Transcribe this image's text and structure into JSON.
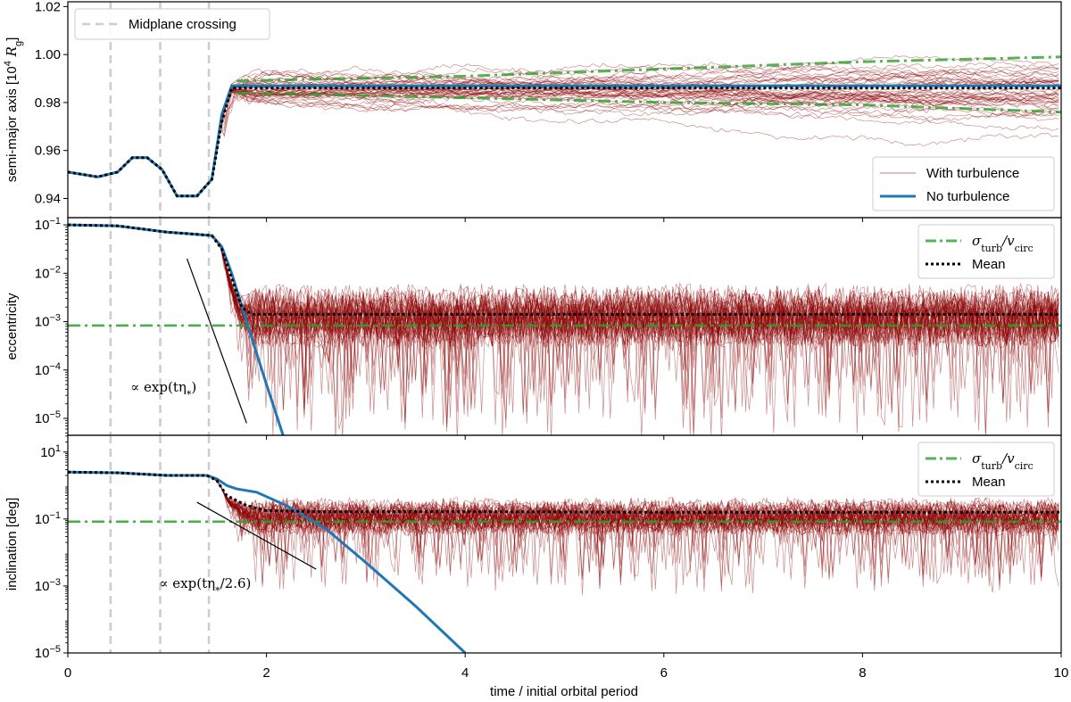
{
  "chart_data": {
    "type": "line",
    "shared_x": {
      "label": "time / initial orbital period",
      "lim": [
        0,
        10
      ],
      "ticks": [
        0,
        2,
        4,
        6,
        8,
        10
      ],
      "tick_labels": [
        "0",
        "2",
        "4",
        "6",
        "8",
        "10"
      ]
    },
    "midplane_crossings": [
      0.43,
      0.93,
      1.42
    ],
    "colors": {
      "turbulence": "#8b0000",
      "no_turbulence": "#1f77b4",
      "sigma": "#2ca02c",
      "mean": "#000000",
      "crossing": "#cccccc"
    },
    "panels": [
      {
        "id": "semi_major_axis",
        "ylabel": "semi-major axis [10",
        "ylabel_sup": "4",
        "ylabel_unit": " R",
        "ylabel_sub": "g",
        "ylabel_end": "]",
        "yscale": "linear",
        "ylim": [
          0.932,
          1.022
        ],
        "yticks": [
          0.94,
          0.96,
          0.98,
          1.0,
          1.02
        ],
        "ytick_labels": [
          "0.94",
          "0.96",
          "0.98",
          "1.00",
          "1.02"
        ],
        "no_turbulence": {
          "x": [
            0,
            0.3,
            0.5,
            0.65,
            0.8,
            0.95,
            1.1,
            1.3,
            1.45,
            1.55,
            1.65,
            1.8,
            2.5,
            4,
            6,
            8,
            10
          ],
          "y": [
            0.951,
            0.949,
            0.951,
            0.957,
            0.957,
            0.952,
            0.941,
            0.941,
            0.948,
            0.975,
            0.987,
            0.987,
            0.987,
            0.987,
            0.987,
            0.987,
            0.987
          ]
        },
        "mean": {
          "x": [
            0,
            0.3,
            0.5,
            0.65,
            0.8,
            0.95,
            1.1,
            1.3,
            1.45,
            1.55,
            1.65,
            1.8,
            2.5,
            4,
            6,
            8,
            10
          ],
          "y": [
            0.951,
            0.949,
            0.951,
            0.957,
            0.957,
            0.952,
            0.941,
            0.941,
            0.948,
            0.972,
            0.986,
            0.986,
            0.986,
            0.986,
            0.986,
            0.986,
            0.986
          ]
        },
        "sigma_upper": {
          "x": [
            1.7,
            4,
            6,
            8,
            10
          ],
          "y": [
            0.989,
            0.991,
            0.994,
            0.997,
            0.999
          ]
        },
        "sigma_lower": {
          "x": [
            1.7,
            4,
            6,
            8,
            10
          ],
          "y": [
            0.984,
            0.982,
            0.98,
            0.979,
            0.976
          ]
        },
        "turbulence_spread": {
          "center": 0.986,
          "amplitude": 0.011,
          "min": 0.958,
          "max": 1.007
        },
        "legend": {
          "position": "lower-right",
          "entries": [
            {
              "label": "With turbulence",
              "kind": "turbulence"
            },
            {
              "label": "No turbulence",
              "kind": "no_turbulence"
            }
          ]
        },
        "crossing_legend": {
          "position": "upper-left",
          "label": "Midplane crossing"
        }
      },
      {
        "id": "eccentricity",
        "ylabel": "eccentricity",
        "yscale": "log",
        "ylim_log10": [
          -5.35,
          -0.85
        ],
        "yticks_log10": [
          -5,
          -4,
          -3,
          -2,
          -1
        ],
        "no_turbulence": {
          "x": [
            0,
            0.5,
            1.0,
            1.2,
            1.45,
            1.55,
            1.65,
            1.8,
            2.0,
            2.27
          ],
          "log10y": [
            -1.0,
            -1.02,
            -1.15,
            -1.18,
            -1.22,
            -1.45,
            -2.0,
            -3.0,
            -4.3,
            -6.0
          ]
        },
        "mean": {
          "x": [
            0,
            0.5,
            1.0,
            1.2,
            1.45,
            1.55,
            1.65,
            1.75,
            1.85,
            2.5,
            4,
            6,
            8,
            10
          ],
          "log10y": [
            -1.0,
            -1.02,
            -1.15,
            -1.18,
            -1.22,
            -1.5,
            -2.1,
            -2.7,
            -2.85,
            -2.85,
            -2.85,
            -2.85,
            -2.85,
            -2.85
          ]
        },
        "sigma": {
          "x": [
            0,
            10
          ],
          "log10y": [
            -3.08,
            -3.08
          ]
        },
        "turbulence_spread": {
          "center_log10": -2.9,
          "amplitude": 0.45,
          "dip_min_log10": -5.2
        },
        "annotation": {
          "text": "∝ exp(tη",
          "sub": "*",
          "end": ")",
          "line": {
            "x": [
              1.2,
              1.8
            ],
            "log10y": [
              -1.7,
              -5.1
            ]
          },
          "text_x": 0.63,
          "text_log10y": -4.45
        },
        "legend": {
          "position": "upper-right",
          "entries": [
            {
              "label": "σ",
              "sub": "turb",
              "mid": "/v",
              "sub2": "circ",
              "kind": "sigma"
            },
            {
              "label": "Mean",
              "kind": "mean"
            }
          ]
        }
      },
      {
        "id": "inclination",
        "ylabel": "inclination [deg]",
        "yscale": "log",
        "ylim_log10": [
          -5.0,
          1.5
        ],
        "yticks_log10": [
          -5,
          -3,
          -1,
          1
        ],
        "no_turbulence": {
          "x": [
            0,
            0.5,
            1.0,
            1.4,
            1.5,
            1.6,
            1.7,
            1.9,
            2.2,
            2.6,
            3.0,
            3.5,
            4.0
          ],
          "log10y": [
            0.4,
            0.38,
            0.3,
            0.3,
            0.2,
            0.0,
            -0.1,
            -0.2,
            -0.6,
            -1.3,
            -2.3,
            -3.6,
            -5.0
          ]
        },
        "mean": {
          "x": [
            0,
            0.5,
            1.0,
            1.4,
            1.5,
            1.6,
            1.8,
            2.0,
            2.5,
            4,
            6,
            8,
            10
          ],
          "log10y": [
            0.4,
            0.38,
            0.3,
            0.3,
            0.15,
            -0.3,
            -0.6,
            -0.75,
            -0.78,
            -0.78,
            -0.8,
            -0.8,
            -0.8
          ]
        },
        "sigma": {
          "x": [
            0,
            10
          ],
          "log10y": [
            -1.08,
            -1.08
          ]
        },
        "turbulence_spread": {
          "center_log10": -0.95,
          "amplitude": 0.35,
          "dip_min_log10": -3.0
        },
        "annotation": {
          "text": "∝ exp(tη",
          "sub": "*",
          "end": "/2.6)",
          "line": {
            "x": [
              1.3,
              2.5
            ],
            "log10y": [
              -0.5,
              -2.5
            ]
          },
          "text_x": 0.92,
          "text_log10y": -3.05
        },
        "legend": {
          "position": "upper-right",
          "entries": [
            {
              "label": "σ",
              "sub": "turb",
              "mid": "/v",
              "sub2": "circ",
              "kind": "sigma"
            },
            {
              "label": "Mean",
              "kind": "mean"
            }
          ]
        }
      }
    ]
  }
}
